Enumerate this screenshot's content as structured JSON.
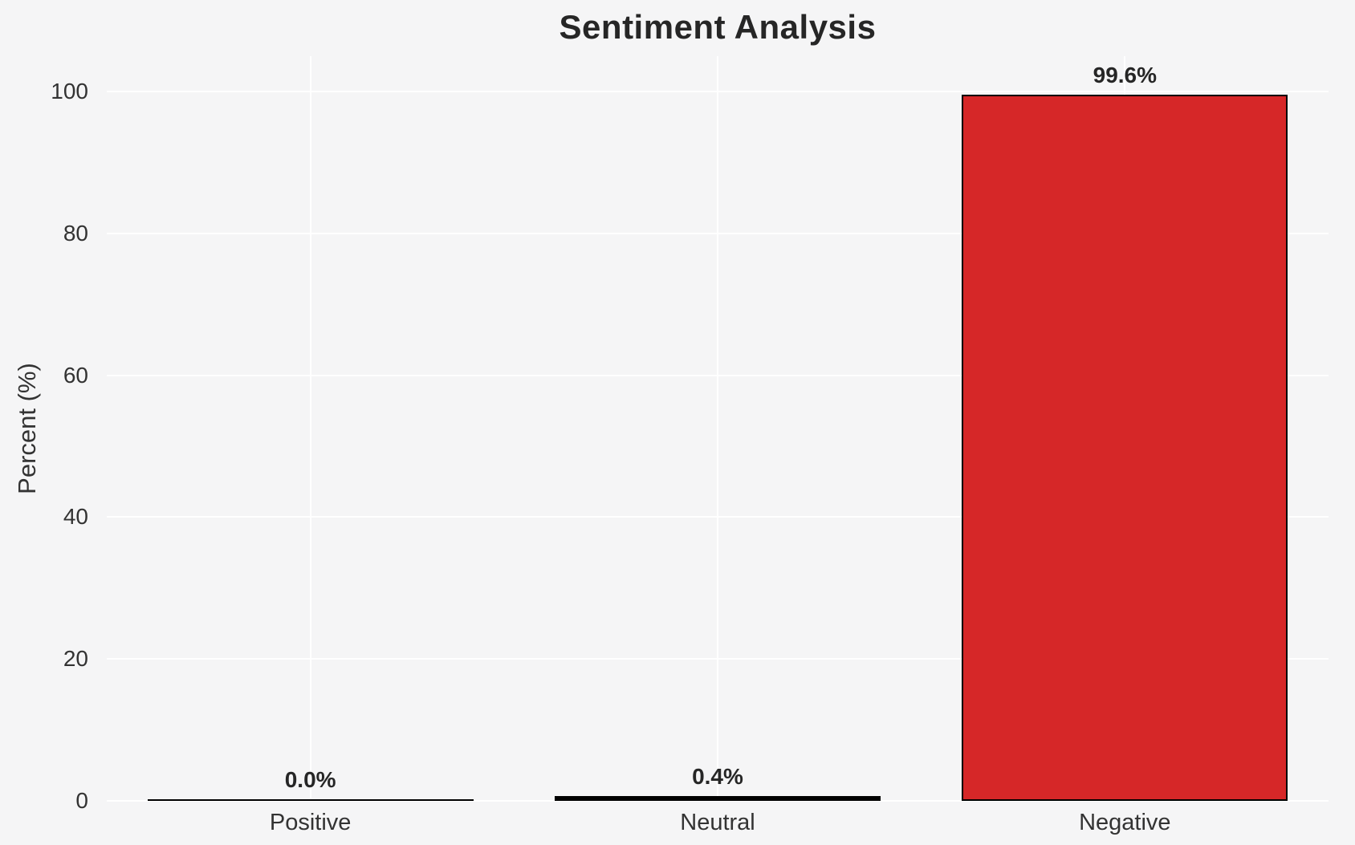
{
  "chart_data": {
    "type": "bar",
    "title": "Sentiment Analysis",
    "xlabel": "",
    "ylabel": "Percent (%)",
    "categories": [
      "Positive",
      "Neutral",
      "Negative"
    ],
    "values": [
      0.0,
      0.4,
      99.6
    ],
    "value_labels": [
      "0.0%",
      "0.4%",
      "99.6%"
    ],
    "yticks": [
      0,
      20,
      40,
      60,
      80,
      100
    ],
    "ylim": [
      0,
      105
    ],
    "grid": true,
    "legend": false,
    "bar_width_fraction": 0.8,
    "colors": {
      "bar_fills": [
        "#1a1a1a",
        "#1a1a1a",
        "#d62728"
      ],
      "bar_edge": "#000000",
      "background": "#f5f5f6",
      "gridline": "#ffffff",
      "tick_text": "#333333",
      "title_text": "#262626"
    }
  }
}
